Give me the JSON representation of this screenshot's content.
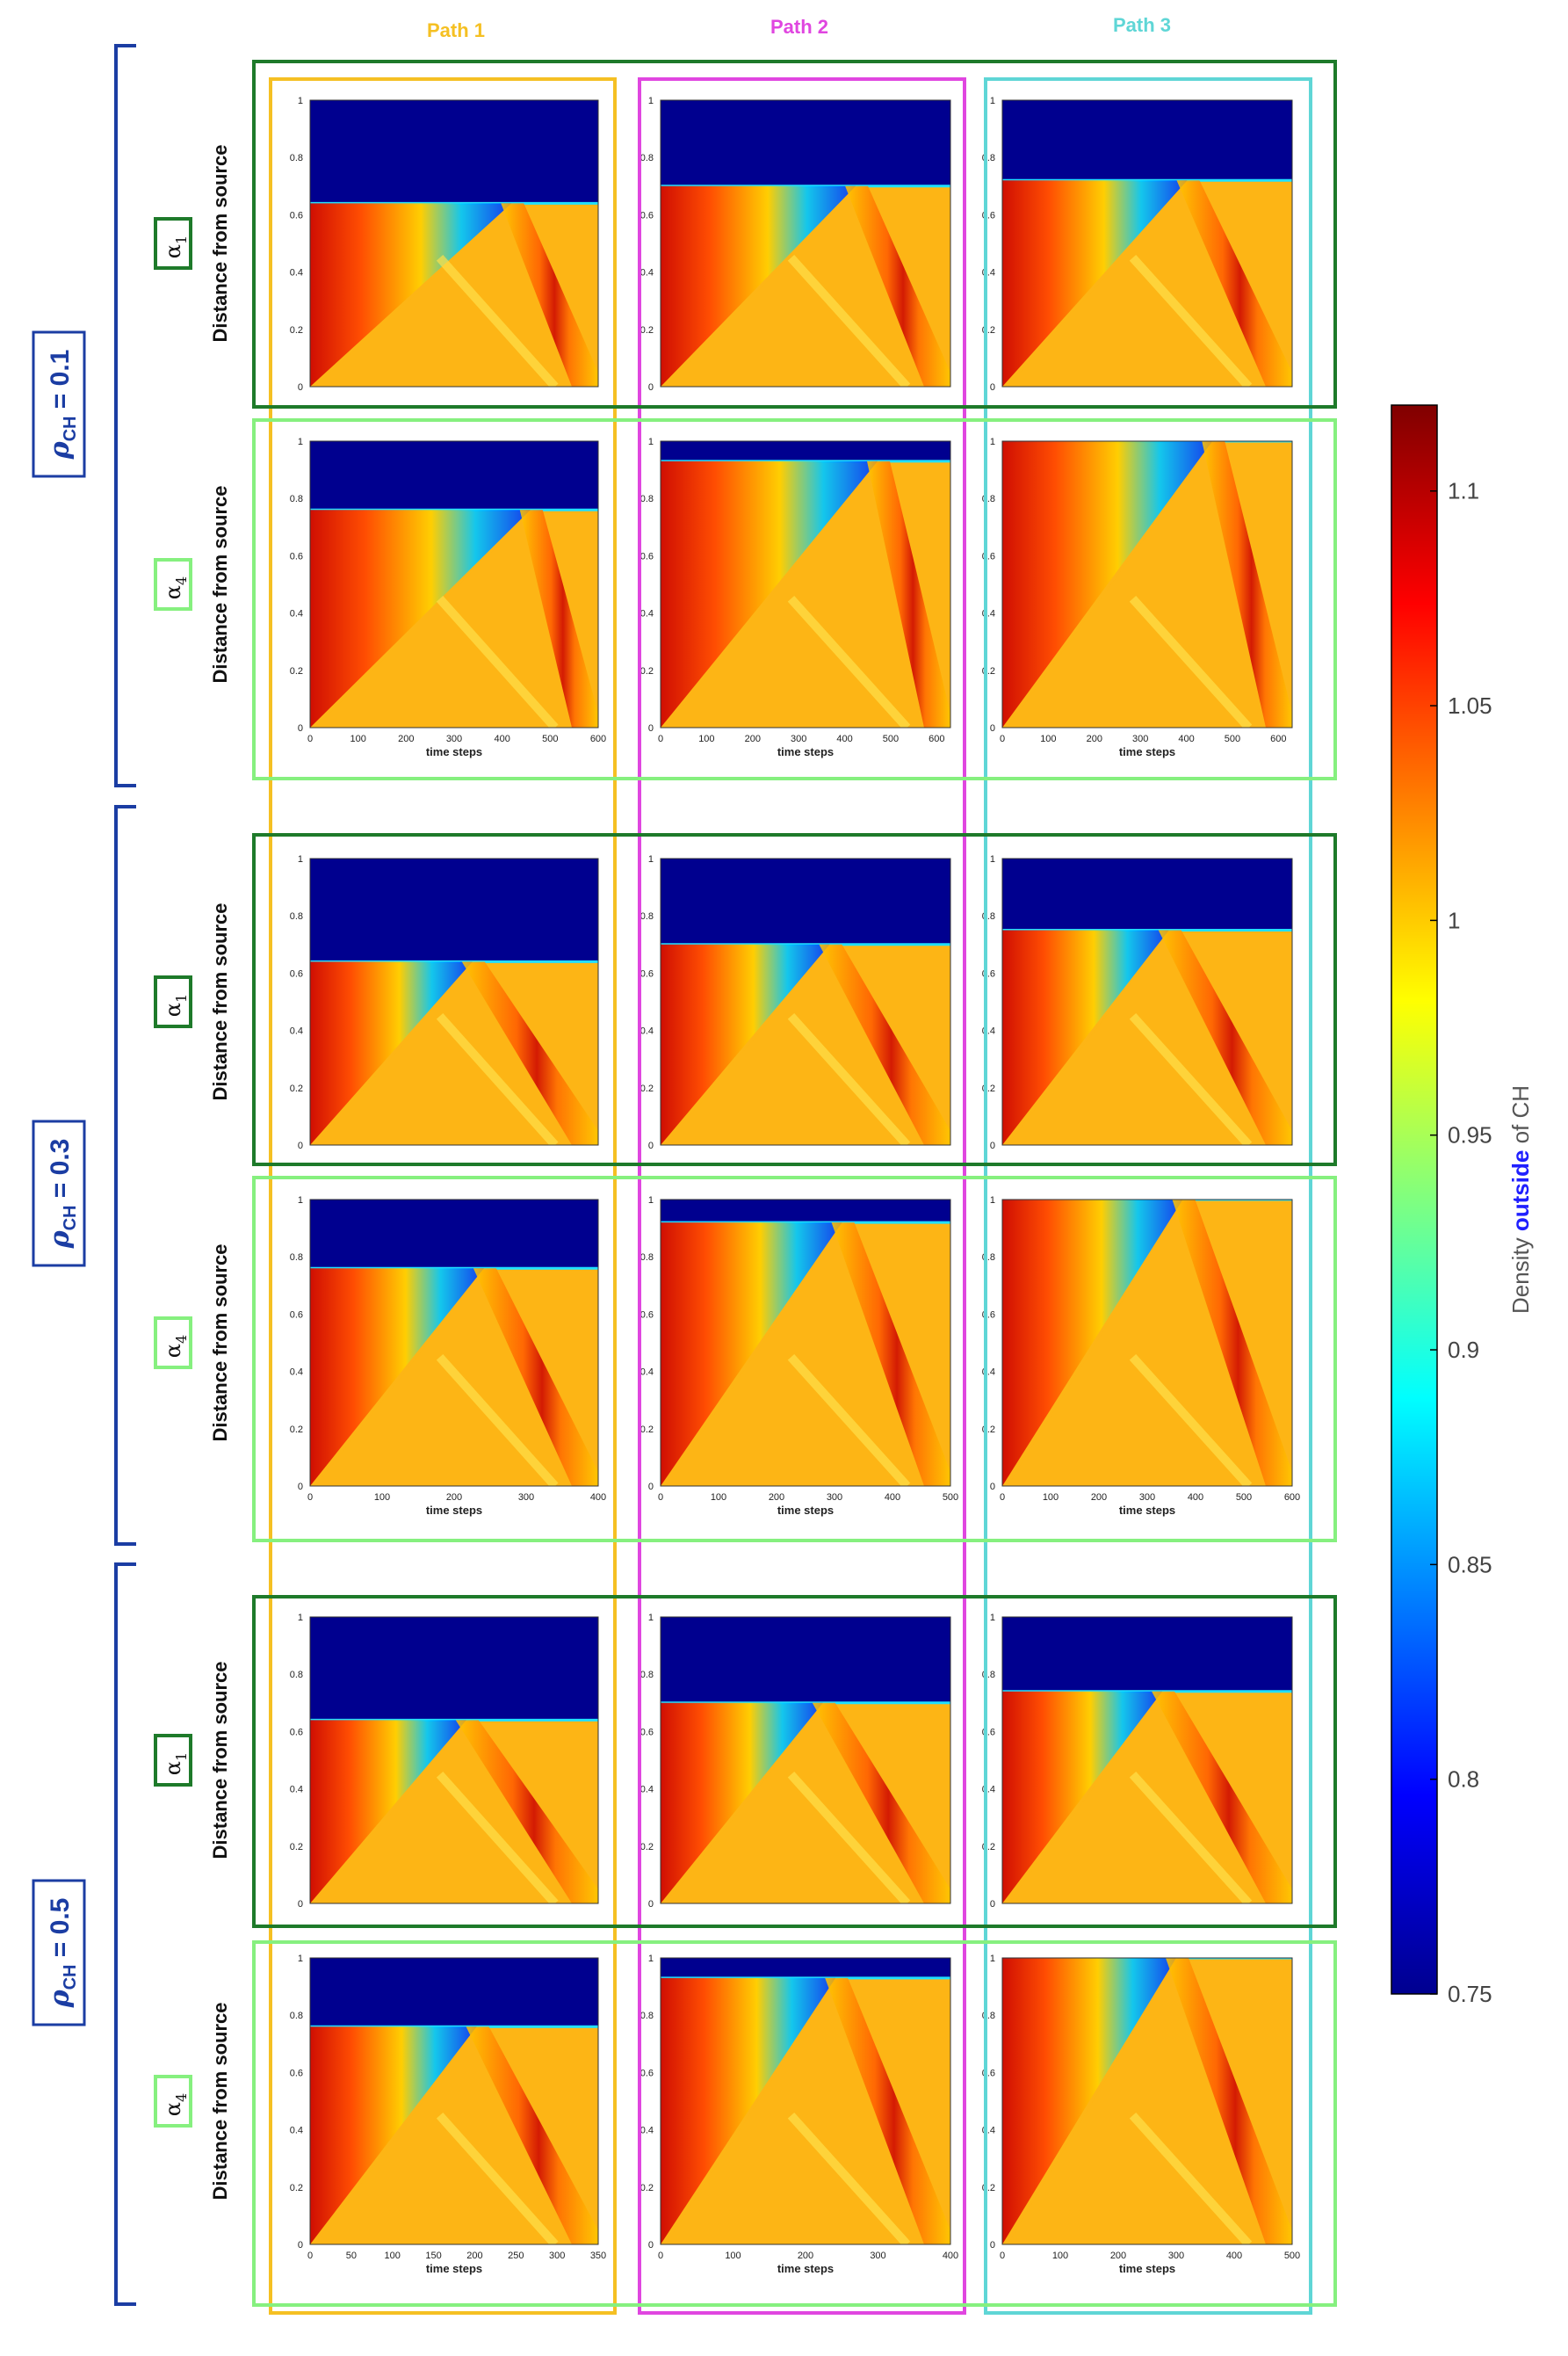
{
  "figure": {
    "columns": [
      {
        "label": "Path 1",
        "color": "#f5c023"
      },
      {
        "label": "Path 2",
        "color": "#e046e0"
      },
      {
        "label": "Path 3",
        "color": "#5fd6d6"
      }
    ],
    "density_groups": [
      {
        "label_main": "ρ",
        "label_sub": "CH",
        "label_value": " = 0.1"
      },
      {
        "label_main": "ρ",
        "label_sub": "CH",
        "label_value": " = 0.3"
      },
      {
        "label_main": "ρ",
        "label_sub": "CH",
        "label_value": " = 0.5"
      }
    ],
    "row_labels": {
      "alpha1": {
        "symbol": "α",
        "sub": "1",
        "color": "#1e7a2a"
      },
      "alpha4": {
        "symbol": "α",
        "sub": "4",
        "color": "#86f07f"
      }
    },
    "group_bracket_color": "#1b3da3",
    "ylabel": "Distance from source",
    "xlabel": "time steps"
  },
  "chart_data": {
    "type": "heatmap",
    "colorbar": {
      "label_parts": [
        "Density ",
        "outside",
        " of CH"
      ],
      "label_accent_color": "#2020ff",
      "range": [
        0.75,
        1.12
      ],
      "ticks": [
        "0.75",
        "0.8",
        "0.85",
        "0.9",
        "0.95",
        "1",
        "1.05",
        "1.1"
      ],
      "colormap": "jet"
    },
    "y_ticks": [
      "0",
      "0.2",
      "0.4",
      "0.6",
      "0.8",
      "1"
    ],
    "panels": [
      {
        "group": 0,
        "row": "alpha1",
        "col": 0,
        "xmax": 600,
        "x_ticks": [],
        "step": 600,
        "front": 0.64,
        "steep": 0.55
      },
      {
        "group": 0,
        "row": "alpha1",
        "col": 1,
        "xmax": 600,
        "x_ticks": [],
        "step": 600,
        "front": 0.7,
        "steep": 0.65
      },
      {
        "group": 0,
        "row": "alpha1",
        "col": 2,
        "xmax": 600,
        "x_ticks": [],
        "step": 600,
        "front": 0.72,
        "steep": 0.75
      },
      {
        "group": 0,
        "row": "alpha4",
        "col": 0,
        "xmax": 600,
        "x_ticks": [
          "0",
          "100",
          "200",
          "300",
          "400",
          "500",
          "600"
        ],
        "step": 600,
        "front": 0.76,
        "steep": 0.55
      },
      {
        "group": 0,
        "row": "alpha4",
        "col": 1,
        "xmax": 630,
        "x_ticks": [
          "0",
          "100",
          "200",
          "300",
          "400",
          "500",
          "600"
        ],
        "step": 600,
        "front": 0.93,
        "steep": 0.7
      },
      {
        "group": 0,
        "row": "alpha4",
        "col": 2,
        "xmax": 630,
        "x_ticks": [
          "0",
          "100",
          "200",
          "300",
          "400",
          "500",
          "600"
        ],
        "step": 600,
        "front": 1.0,
        "steep": 0.8
      },
      {
        "group": 1,
        "row": "alpha1",
        "col": 0,
        "xmax": 400,
        "x_ticks": [],
        "step": 400,
        "front": 0.64,
        "steep": 0.9
      },
      {
        "group": 1,
        "row": "alpha1",
        "col": 1,
        "xmax": 500,
        "x_ticks": [],
        "step": 500,
        "front": 0.7,
        "steep": 0.9
      },
      {
        "group": 1,
        "row": "alpha1",
        "col": 2,
        "xmax": 600,
        "x_ticks": [],
        "step": 600,
        "front": 0.75,
        "steep": 1.0
      },
      {
        "group": 1,
        "row": "alpha4",
        "col": 0,
        "xmax": 400,
        "x_ticks": [
          "0",
          "100",
          "200",
          "300",
          "400"
        ],
        "step": 400,
        "front": 0.76,
        "steep": 0.9
      },
      {
        "group": 1,
        "row": "alpha4",
        "col": 1,
        "xmax": 500,
        "x_ticks": [
          "0",
          "100",
          "200",
          "300",
          "400",
          "500"
        ],
        "step": 500,
        "front": 0.92,
        "steep": 1.0
      },
      {
        "group": 1,
        "row": "alpha4",
        "col": 2,
        "xmax": 600,
        "x_ticks": [
          "0",
          "100",
          "200",
          "300",
          "400",
          "500",
          "600"
        ],
        "step": 600,
        "front": 1.0,
        "steep": 1.1
      },
      {
        "group": 2,
        "row": "alpha1",
        "col": 0,
        "xmax": 350,
        "x_ticks": [],
        "step": 350,
        "front": 0.64,
        "steep": 1.0
      },
      {
        "group": 2,
        "row": "alpha1",
        "col": 1,
        "xmax": 400,
        "x_ticks": [],
        "step": 400,
        "front": 0.7,
        "steep": 1.0
      },
      {
        "group": 2,
        "row": "alpha1",
        "col": 2,
        "xmax": 500,
        "x_ticks": [],
        "step": 500,
        "front": 0.74,
        "steep": 1.1
      },
      {
        "group": 2,
        "row": "alpha4",
        "col": 0,
        "xmax": 350,
        "x_ticks": [
          "0",
          "50",
          "100",
          "150",
          "200",
          "250",
          "300",
          "350"
        ],
        "step": 350,
        "front": 0.76,
        "steep": 1.0
      },
      {
        "group": 2,
        "row": "alpha4",
        "col": 1,
        "xmax": 400,
        "x_ticks": [
          "0",
          "100",
          "200",
          "300",
          "400"
        ],
        "step": 400,
        "front": 0.93,
        "steep": 1.1
      },
      {
        "group": 2,
        "row": "alpha4",
        "col": 2,
        "xmax": 500,
        "x_ticks": [
          "0",
          "100",
          "200",
          "300",
          "400",
          "500"
        ],
        "step": 500,
        "front": 1.0,
        "steep": 1.2
      }
    ]
  }
}
